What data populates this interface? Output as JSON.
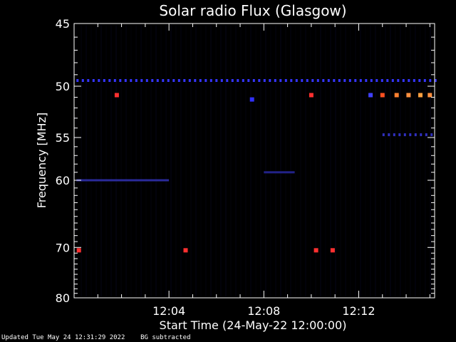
{
  "chart_data": {
    "type": "heatmap",
    "title": "Solar radio Flux (Glasgow)",
    "xlabel": "Start Time (24-May-22 12:00:00)",
    "ylabel": "Frequency [MHz]",
    "x_range_minutes": [
      0,
      15.2
    ],
    "x_ticks": [
      {
        "value": 4,
        "label": "12:04"
      },
      {
        "value": 8,
        "label": "12:08"
      },
      {
        "value": 12,
        "label": "12:12"
      }
    ],
    "y_range_mhz": [
      45,
      80
    ],
    "y_ticks": [
      {
        "value": 45,
        "label": "45"
      },
      {
        "value": 50,
        "label": "50"
      },
      {
        "value": 55,
        "label": "55"
      },
      {
        "value": 60,
        "label": "60"
      },
      {
        "value": 70,
        "label": "70"
      },
      {
        "value": 80,
        "label": "80"
      }
    ],
    "y_scale": "reciprocal",
    "colors": {
      "background": "#000000",
      "low": "#1a1a70",
      "mid": "#3030ff",
      "high": "#ff3030",
      "peak": "#ffa040"
    },
    "features": [
      {
        "kind": "band",
        "freq": 49.5,
        "x0": 0.1,
        "x1": 15.2,
        "color": "#3535ff",
        "dashed": true
      },
      {
        "kind": "band",
        "freq": 60.0,
        "x0": 0.1,
        "x1": 4.0,
        "color": "#2a2a9a",
        "dashed": false
      },
      {
        "kind": "band",
        "freq": 54.7,
        "x0": 13.0,
        "x1": 15.2,
        "color": "#3030c0",
        "dashed": true
      },
      {
        "kind": "band",
        "freq": 59.0,
        "x0": 8.0,
        "x1": 9.3,
        "color": "#222288",
        "dashed": false
      },
      {
        "kind": "spot",
        "freq": 50.8,
        "x": 1.8,
        "color": "#ff3030"
      },
      {
        "kind": "spot",
        "freq": 51.2,
        "x": 7.5,
        "color": "#3030ff"
      },
      {
        "kind": "spot",
        "freq": 50.8,
        "x": 10.0,
        "color": "#ff3030"
      },
      {
        "kind": "spot",
        "freq": 50.8,
        "x": 12.5,
        "color": "#4040ff"
      },
      {
        "kind": "spot",
        "freq": 50.8,
        "x": 13.0,
        "color": "#ff5020"
      },
      {
        "kind": "spot",
        "freq": 50.8,
        "x": 13.6,
        "color": "#ff8030"
      },
      {
        "kind": "spot",
        "freq": 50.8,
        "x": 14.1,
        "color": "#ff9040"
      },
      {
        "kind": "spot",
        "freq": 50.8,
        "x": 14.6,
        "color": "#ffa040"
      },
      {
        "kind": "spot",
        "freq": 50.8,
        "x": 15.0,
        "color": "#ff9040"
      },
      {
        "kind": "spot",
        "freq": 70.5,
        "x": 0.2,
        "color": "#ff3030"
      },
      {
        "kind": "spot",
        "freq": 70.5,
        "x": 4.7,
        "color": "#ff3030"
      },
      {
        "kind": "spot",
        "freq": 70.5,
        "x": 10.2,
        "color": "#ff3030"
      },
      {
        "kind": "spot",
        "freq": 70.5,
        "x": 10.9,
        "color": "#ff3030"
      }
    ]
  },
  "footer": {
    "updated": "Updated Tue May 24 12:31:29 2022",
    "note": "BG subtracted"
  }
}
